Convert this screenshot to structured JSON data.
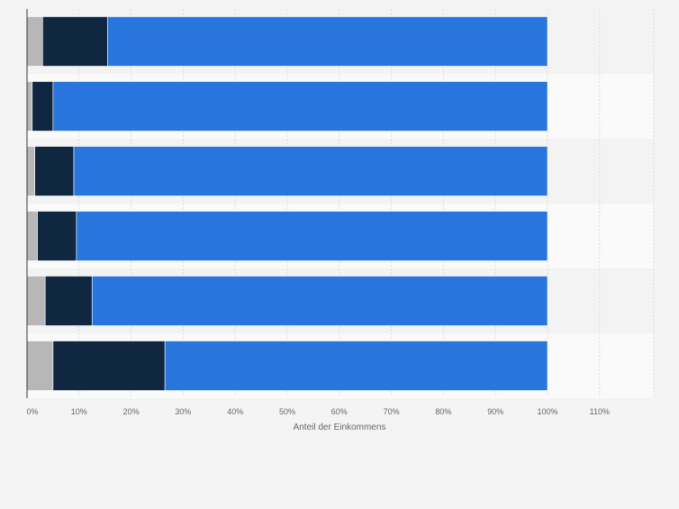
{
  "chart_data": {
    "type": "bar",
    "orientation": "horizontal",
    "stacked": true,
    "categories": [
      "",
      "",
      "",
      "",
      "",
      ""
    ],
    "series": [
      {
        "values": [
          3,
          1,
          1.5,
          2,
          3.5,
          5
        ],
        "color": "#b7b7b7"
      },
      {
        "values": [
          12.5,
          4,
          7.5,
          7.5,
          9,
          21.5
        ],
        "color": "#0f2741"
      },
      {
        "values": [
          84.5,
          95,
          91,
          90.5,
          87.5,
          73.5
        ],
        "color": "#2876dd"
      }
    ],
    "xlabel": "Anteil der Einkommens",
    "ylabel": "",
    "title": "",
    "xlim": [
      0,
      120
    ],
    "x_ticks": [
      0,
      10,
      20,
      30,
      40,
      50,
      60,
      70,
      80,
      90,
      100,
      110
    ],
    "x_tick_labels": [
      "0%",
      "10%",
      "20%",
      "30%",
      "40%",
      "50%",
      "60%",
      "70%",
      "80%",
      "90%",
      "100%",
      "110%"
    ],
    "grid": true,
    "legend": "none",
    "colors": {
      "background": "#f4f4f4",
      "band_light": "#fafafa",
      "band_dark": "#f3f3f3",
      "grid": "#dcdcdc",
      "axis": "#333333",
      "text": "#666666"
    }
  }
}
